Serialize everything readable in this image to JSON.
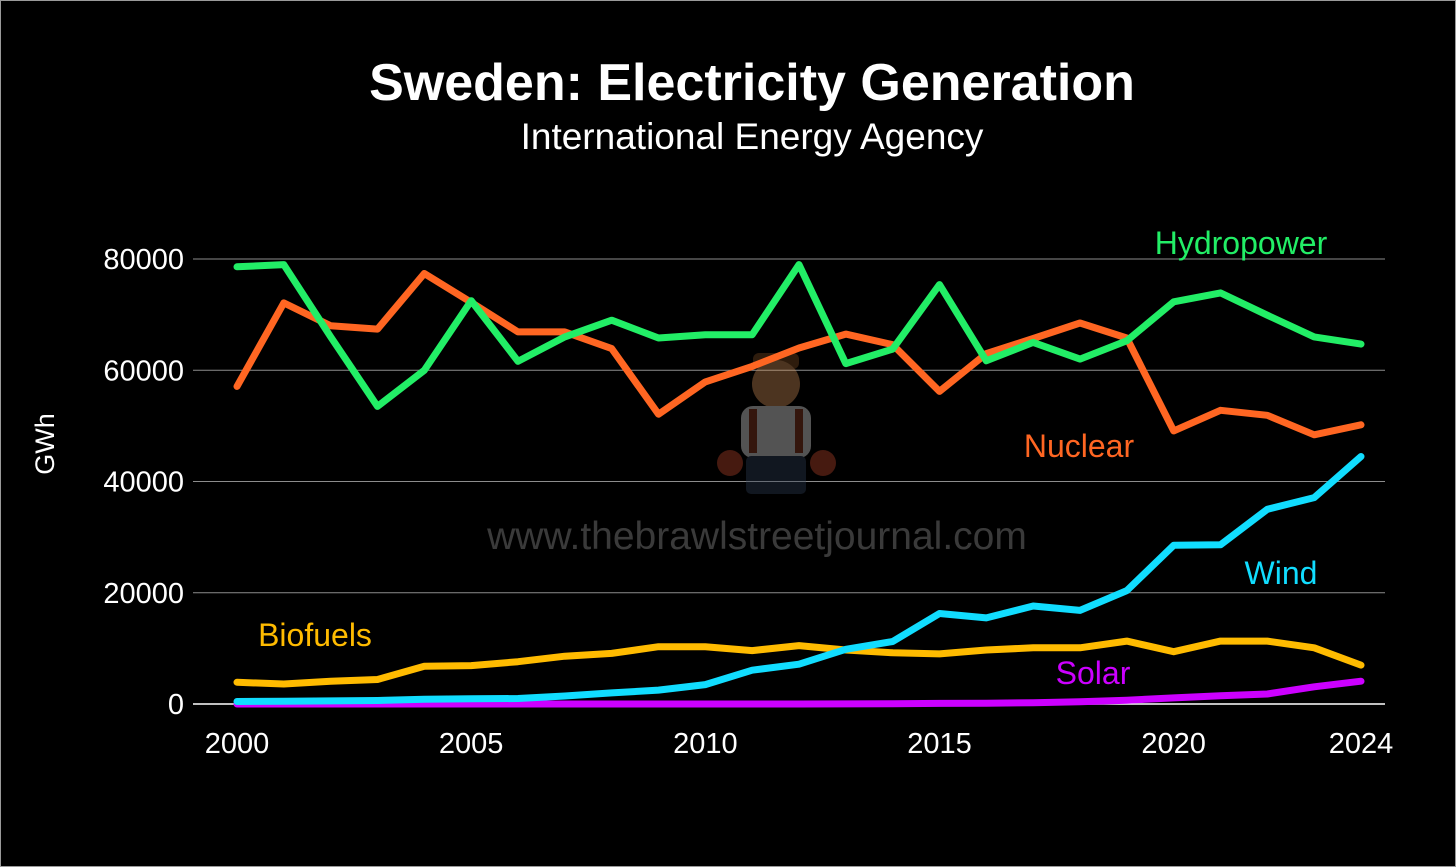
{
  "chart_data": {
    "type": "line",
    "title": "Sweden: Electricity Generation",
    "subtitle": "International Energy Agency",
    "xlabel": "",
    "ylabel": "GWh",
    "xlim": [
      2000,
      2024
    ],
    "ylim": [
      0,
      80000
    ],
    "x_ticks": [
      "2000",
      "2005",
      "2010",
      "2015",
      "2020",
      "2024"
    ],
    "y_ticks": [
      "0",
      "20000",
      "40000",
      "60000",
      "80000"
    ],
    "grid": true,
    "x": [
      2000,
      2001,
      2002,
      2003,
      2004,
      2005,
      2006,
      2007,
      2008,
      2009,
      2010,
      2011,
      2012,
      2013,
      2014,
      2015,
      2016,
      2017,
      2018,
      2019,
      2020,
      2021,
      2022,
      2023,
      2024
    ],
    "series": [
      {
        "name": "Hydropower",
        "color": "#22ee66",
        "values": [
          78600,
          79000,
          66000,
          53500,
          60000,
          72500,
          61600,
          66000,
          69000,
          65800,
          66400,
          66400,
          79000,
          61200,
          63800,
          75400,
          61700,
          65000,
          62000,
          65300,
          72300,
          73900,
          69900,
          66000,
          64700
        ]
      },
      {
        "name": "Nuclear",
        "color": "#ff6622",
        "values": [
          57100,
          72100,
          68000,
          67400,
          77400,
          72200,
          66900,
          66900,
          63900,
          52100,
          57900,
          60700,
          64000,
          66500,
          64600,
          56200,
          63000,
          65700,
          68500,
          65800,
          49100,
          52800,
          51900,
          48400,
          50200
        ]
      },
      {
        "name": "Wind",
        "color": "#11ddff",
        "values": [
          450,
          480,
          560,
          630,
          860,
          940,
          990,
          1430,
          1990,
          2490,
          3490,
          6080,
          7160,
          9840,
          11230,
          16270,
          15480,
          17610,
          16820,
          20380,
          28530,
          28620,
          35000,
          37100,
          44500
        ]
      },
      {
        "name": "Biofuels",
        "color": "#ffbb00",
        "values": [
          3900,
          3600,
          4100,
          4400,
          6800,
          6900,
          7600,
          8600,
          9100,
          10300,
          10300,
          9600,
          10500,
          9700,
          9200,
          9000,
          9700,
          10100,
          10100,
          11300,
          9400,
          11300,
          11300,
          10100,
          7000
        ]
      },
      {
        "name": "Solar",
        "color": "#cc00ff",
        "values": [
          0,
          0,
          0,
          0,
          0,
          0,
          0,
          0,
          0,
          0,
          0,
          0,
          0,
          10,
          40,
          100,
          140,
          230,
          410,
          690,
          1100,
          1500,
          1800,
          3100,
          4100
        ]
      }
    ],
    "watermark": "www.thebrawlstreetjournal.com"
  }
}
